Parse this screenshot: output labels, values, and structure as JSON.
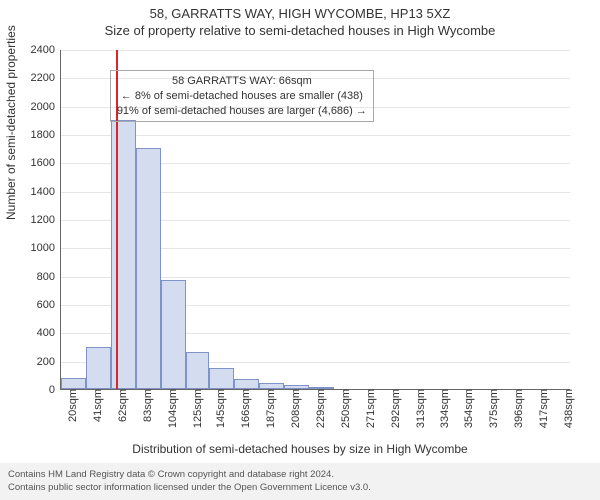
{
  "title_line1": "58, GARRATTS WAY, HIGH WYCOMBE, HP13 5XZ",
  "title_line2": "Size of property relative to semi-detached houses in High Wycombe",
  "ylabel": "Number of semi-detached properties",
  "xlabel": "Distribution of semi-detached houses by size in High Wycombe",
  "chart": {
    "type": "histogram",
    "background_color": "#ffffff",
    "grid_color": "#e6e6e6",
    "axis_color": "#666666",
    "bar_fill": "#d4dcf0",
    "bar_border": "#7f93c9",
    "ylim": [
      0,
      2400
    ],
    "ytick_step": 200,
    "xtick_labels": [
      "20sqm",
      "41sqm",
      "62sqm",
      "83sqm",
      "104sqm",
      "125sqm",
      "145sqm",
      "166sqm",
      "187sqm",
      "208sqm",
      "229sqm",
      "250sqm",
      "271sqm",
      "292sqm",
      "313sqm",
      "334sqm",
      "354sqm",
      "375sqm",
      "396sqm",
      "417sqm",
      "438sqm"
    ],
    "xtick_positions": [
      20,
      41,
      62,
      83,
      104,
      125,
      145,
      166,
      187,
      208,
      229,
      250,
      271,
      292,
      313,
      334,
      354,
      375,
      396,
      417,
      438
    ],
    "x_range": [
      20,
      450
    ],
    "bars": [
      {
        "x0": 20,
        "x1": 41,
        "value": 80
      },
      {
        "x0": 41,
        "x1": 62,
        "value": 300
      },
      {
        "x0": 62,
        "x1": 83,
        "value": 1900
      },
      {
        "x0": 83,
        "x1": 104,
        "value": 1700
      },
      {
        "x0": 104,
        "x1": 125,
        "value": 770
      },
      {
        "x0": 125,
        "x1": 145,
        "value": 260
      },
      {
        "x0": 145,
        "x1": 166,
        "value": 150
      },
      {
        "x0": 166,
        "x1": 187,
        "value": 70
      },
      {
        "x0": 187,
        "x1": 208,
        "value": 40
      },
      {
        "x0": 208,
        "x1": 229,
        "value": 25
      },
      {
        "x0": 229,
        "x1": 250,
        "value": 15
      }
    ],
    "marker": {
      "x": 66,
      "color": "#d62728"
    },
    "xtick_fontsize": 11,
    "ytick_fontsize": 11,
    "label_fontsize": 12
  },
  "annotation": {
    "line1": "58 GARRATTS WAY: 66sqm",
    "line2": "← 8% of semi-detached houses are smaller (438)",
    "line3": "91% of semi-detached houses are larger (4,686) →",
    "border_color": "#aaaaaa"
  },
  "footer": {
    "line1": "Contains HM Land Registry data © Crown copyright and database right 2024.",
    "line2": "Contains public sector information licensed under the Open Government Licence v3.0."
  }
}
